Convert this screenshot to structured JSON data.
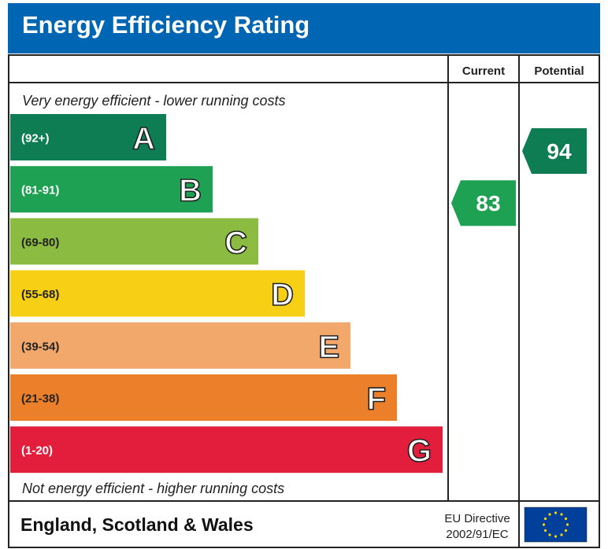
{
  "title": "Energy Efficiency Rating",
  "header": {
    "current_label": "Current",
    "potential_label": "Potential"
  },
  "top_note": "Very energy efficient - lower running costs",
  "bottom_note": "Not energy efficient - higher running costs",
  "footer": {
    "region": "England, Scotland & Wales",
    "directive_line1": "EU Directive",
    "directive_line2": "2002/91/EC",
    "flag_icon": "eu-flag-icon"
  },
  "chart_data": {
    "type": "bar",
    "bands": [
      {
        "letter": "A",
        "range": "(92+)",
        "color": "#0f7d54"
      },
      {
        "letter": "B",
        "range": "(81-91)",
        "color": "#1fa153"
      },
      {
        "letter": "C",
        "range": "(69-80)",
        "color": "#8cbb41"
      },
      {
        "letter": "D",
        "range": "(55-68)",
        "color": "#f7cf14"
      },
      {
        "letter": "E",
        "range": "(39-54)",
        "color": "#f2a86b"
      },
      {
        "letter": "F",
        "range": "(21-38)",
        "color": "#ec7f2a"
      },
      {
        "letter": "G",
        "range": "(1-20)",
        "color": "#e31d3c"
      }
    ],
    "current": {
      "value": 83,
      "band": "B",
      "color": "#1fa153"
    },
    "potential": {
      "value": 94,
      "band": "A",
      "color": "#0f7d54"
    }
  }
}
